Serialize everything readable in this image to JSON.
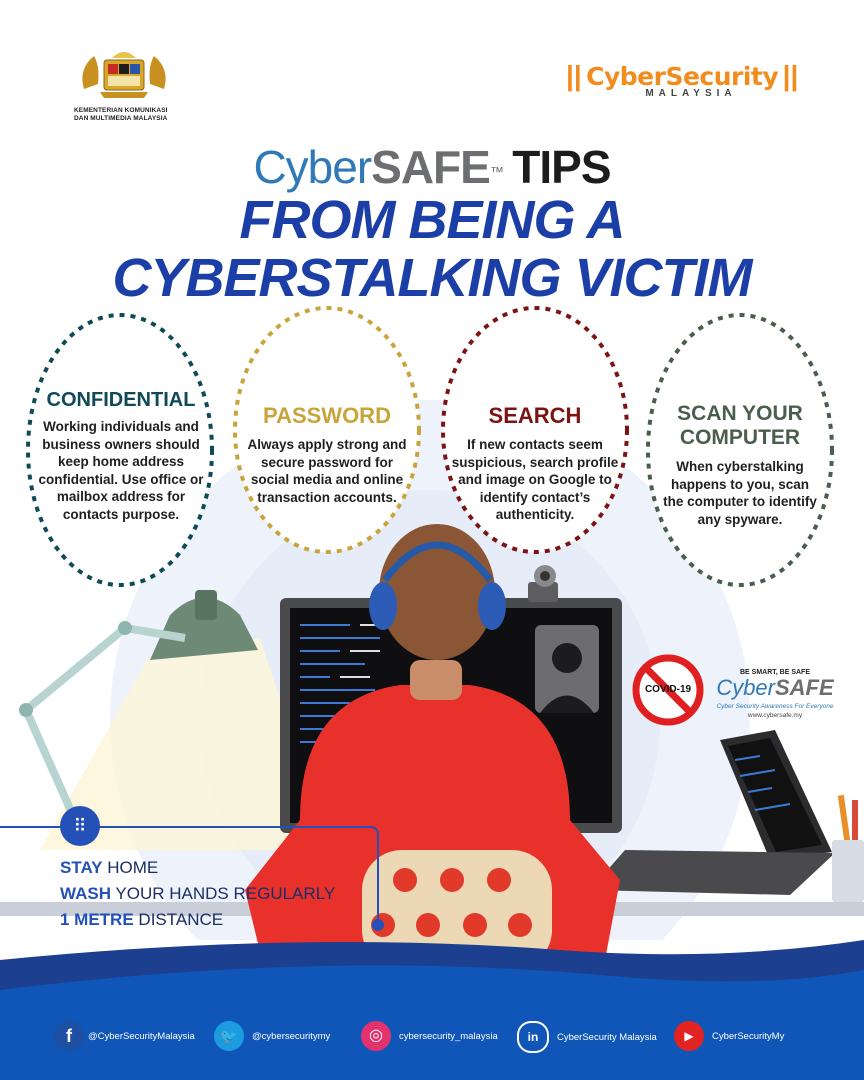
{
  "header": {
    "ministry_line1": "KEMENTERIAN KOMUNIKASI",
    "ministry_line2": "DAN MULTIMEDIA MALAYSIA",
    "brand_name": "CyberSecurity",
    "brand_country": "MALAYSIA"
  },
  "title": {
    "cyber": "Cyber",
    "safe": "SAFE",
    "tm": "™",
    "tips": "TIPS",
    "line2": "FROM BEING A",
    "line3": "CYBERSTALKING VICTIM"
  },
  "tips": [
    {
      "heading": "CONFIDENTIAL",
      "body": "Working individuals and business owners should keep home address confidential. Use office or mailbox address for contacts purpose.",
      "color": "#0f4a57"
    },
    {
      "heading": "PASSWORD",
      "body": "Always apply strong and secure password for social media and online transaction accounts.",
      "color": "#c9a43b"
    },
    {
      "heading": "SEARCH",
      "body": "If new contacts seem suspicious, search profile and image on Google to identify contact’s authenticity.",
      "color": "#7d1414"
    },
    {
      "heading": "SCAN YOUR COMPUTER",
      "body": "When cyberstalking happens to you, scan the computer to identify any spyware.",
      "color": "#4a5e4e"
    }
  ],
  "covid_badge": "COVID-19",
  "cybersafe_logo": {
    "tagline": "BE SMART, BE SAFE",
    "name_cyber": "Cyber",
    "name_safe": "SAFE",
    "slogan": "Cyber Security Awareness For Everyone",
    "url": "www.cybersafe.my"
  },
  "covid_tips": [
    {
      "strong": "STAY",
      "rest": " HOME"
    },
    {
      "strong": "WASH",
      "rest": " YOUR HANDS REGULARLY"
    },
    {
      "strong": "1 METRE",
      "rest": " DISTANCE"
    }
  ],
  "footer": {
    "social": [
      {
        "icon": "facebook-icon",
        "handle": "@CyberSecurityMalaysia"
      },
      {
        "icon": "twitter-icon",
        "handle": "@cybersecuritymy"
      },
      {
        "icon": "instagram-icon",
        "handle": "cybersecurity_malaysia"
      },
      {
        "icon": "linkedin-icon",
        "handle": "CyberSecurity Malaysia"
      },
      {
        "icon": "youtube-icon",
        "handle": "CyberSecurityMy"
      }
    ]
  },
  "colors": {
    "title_blue": "#1b3fa6",
    "cyber_blue": "#2f79b8",
    "orange": "#f28c1e",
    "red_shirt": "#e8312b",
    "footer_blue": "#0f56b8"
  }
}
